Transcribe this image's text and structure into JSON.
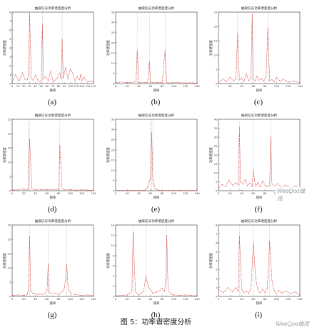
{
  "figure_caption": "图 5：功率谱密度分析",
  "watermarks": [
    "WeeQoo维库",
    "WeeQoo维库"
  ],
  "colors": {
    "series": "#d22323",
    "guides": "#7a7a7a",
    "axis": "#333333"
  },
  "chart_data": [
    {
      "label": "(a)",
      "type": "line",
      "title": "抽取信号功率谱密度分析",
      "xlabel": "频率",
      "ylabel": "功率谱密度",
      "xlim": [
        0,
        140
      ],
      "ylim": [
        0,
        8
      ],
      "xticks": [
        "0",
        "10",
        "20",
        "30",
        "40",
        "50",
        "60",
        "70",
        "80",
        "90",
        "100",
        "110",
        "120",
        "130",
        "140"
      ],
      "yticks": [
        "0",
        "1",
        "2",
        "3",
        "4",
        "5",
        "6",
        "7",
        "8"
      ],
      "x": [
        0,
        6,
        12,
        18,
        22,
        26,
        28,
        30,
        33,
        36,
        40,
        44,
        48,
        50,
        52,
        54,
        58,
        62,
        66,
        70,
        72,
        74,
        78,
        82,
        84,
        86,
        88,
        92,
        96,
        100,
        104,
        108,
        112,
        116,
        118,
        120,
        124,
        128,
        132,
        136,
        140
      ],
      "values": [
        0.2,
        1.0,
        0.3,
        1.2,
        0.5,
        0.4,
        1.0,
        7.9,
        0.6,
        0.3,
        1.0,
        0.4,
        0.2,
        0.5,
        6.7,
        0.5,
        0.8,
        0.3,
        1.4,
        0.4,
        0.2,
        0.4,
        0.6,
        1.2,
        0.5,
        5.0,
        0.6,
        1.8,
        0.5,
        1.6,
        1.2,
        0.3,
        0.8,
        0.4,
        1.1,
        0.3,
        0.7,
        0.3,
        0.2,
        0.3,
        0.2
      ]
    },
    {
      "label": "(b)",
      "type": "line",
      "title": "抽取信号功率谱密度分析",
      "xlabel": "频率",
      "ylabel": "功率谱密度",
      "xlim": [
        0,
        140
      ],
      "ylim": [
        0,
        35
      ],
      "xticks": [
        "0",
        "20",
        "40",
        "60",
        "80",
        "100",
        "120",
        "140"
      ],
      "yticks": [
        "0",
        "5",
        "10",
        "15",
        "20",
        "25",
        "30",
        "35"
      ],
      "x": [
        0,
        10,
        20,
        30,
        35,
        37,
        40,
        45,
        50,
        55,
        58,
        60,
        64,
        70,
        76,
        80,
        85,
        88,
        90,
        94,
        100,
        110,
        120,
        130,
        140
      ],
      "values": [
        0.3,
        0.8,
        0.4,
        0.6,
        1.0,
        16.2,
        0.6,
        0.4,
        0.5,
        0.6,
        11.0,
        0.8,
        0.4,
        0.5,
        0.4,
        0.6,
        16.5,
        0.7,
        0.4,
        0.3,
        0.5,
        0.4,
        0.3,
        0.4,
        0.2
      ]
    },
    {
      "label": "(c)",
      "type": "line",
      "title": "抽取信号功率谱密度分析",
      "xlabel": "频率",
      "ylabel": "功率谱密度",
      "xlim": [
        0,
        140
      ],
      "ylim": [
        0,
        25
      ],
      "xticks": [
        "0",
        "20",
        "40",
        "60",
        "80",
        "100",
        "120",
        "140"
      ],
      "yticks": [
        "0",
        "5",
        "10",
        "15",
        "20",
        "25"
      ],
      "x": [
        0,
        8,
        14,
        20,
        26,
        30,
        33,
        36,
        40,
        44,
        48,
        52,
        56,
        58,
        60,
        63,
        66,
        70,
        74,
        78,
        82,
        85,
        88,
        92,
        96,
        100,
        106,
        112,
        120,
        130,
        140
      ],
      "values": [
        0.4,
        1.6,
        0.6,
        2.3,
        0.7,
        1.8,
        17.8,
        1.2,
        2.0,
        0.6,
        3.5,
        0.9,
        2.1,
        24.2,
        1.5,
        0.7,
        2.6,
        1.1,
        1.9,
        0.8,
        2.8,
        19.6,
        1.0,
        1.4,
        0.6,
        2.2,
        0.8,
        1.5,
        0.5,
        0.9,
        0.3
      ]
    },
    {
      "label": "(d)",
      "type": "line",
      "title": "抽取信号功率谱密度分析",
      "xlabel": "频率",
      "ylabel": "功率谱密度",
      "xlim": [
        0,
        140
      ],
      "ylim": [
        0,
        25
      ],
      "xticks": [
        "0",
        "20",
        "40",
        "60",
        "80",
        "100",
        "120",
        "140"
      ],
      "yticks": [
        "0",
        "5",
        "10",
        "15",
        "20",
        "25"
      ],
      "x": [
        0,
        10,
        20,
        26,
        28,
        30,
        34,
        40,
        50,
        60,
        70,
        76,
        80,
        82,
        86,
        90,
        100,
        110,
        120,
        130,
        140
      ],
      "values": [
        0.2,
        0.4,
        0.6,
        0.3,
        0.8,
        18.2,
        0.7,
        0.3,
        0.4,
        0.3,
        0.5,
        0.4,
        0.6,
        16.4,
        0.7,
        0.3,
        0.4,
        0.2,
        0.3,
        0.2,
        0.1
      ]
    },
    {
      "label": "(e)",
      "type": "line",
      "title": "抽取信号功率谱密度分析",
      "xlabel": "频率",
      "ylabel": "功率谱密度",
      "xlim": [
        0,
        140
      ],
      "ylim": [
        0,
        35
      ],
      "xticks": [
        "0",
        "20",
        "40",
        "60",
        "80",
        "100",
        "120",
        "140"
      ],
      "yticks": [
        "0",
        "5",
        "10",
        "15",
        "20",
        "25",
        "30",
        "35"
      ],
      "x": [
        0,
        10,
        20,
        30,
        40,
        50,
        54,
        58,
        60,
        62,
        64,
        66,
        68,
        72,
        76,
        80,
        90,
        100,
        110,
        120,
        130,
        140
      ],
      "values": [
        0.1,
        0.2,
        0.1,
        0.2,
        0.1,
        0.3,
        1.2,
        4.5,
        6.4,
        28.5,
        5.0,
        3.2,
        1.0,
        0.4,
        0.2,
        0.1,
        0.2,
        0.1,
        0.2,
        0.1,
        0.1,
        0.1
      ]
    },
    {
      "label": "(f)",
      "type": "line",
      "title": "抽取信号功率谱密度分析",
      "xlabel": "频率",
      "ylabel": "功率谱密度",
      "xlim": [
        0,
        140
      ],
      "ylim": [
        0,
        40
      ],
      "xticks": [
        "0",
        "20",
        "40",
        "60",
        "80",
        "100",
        "120",
        "140"
      ],
      "yticks": [
        "0",
        "5",
        "10",
        "15",
        "20",
        "25",
        "30",
        "35",
        "40"
      ],
      "x": [
        0,
        6,
        12,
        18,
        24,
        30,
        34,
        36,
        38,
        42,
        46,
        50,
        54,
        58,
        60,
        62,
        64,
        68,
        72,
        76,
        80,
        84,
        88,
        90,
        92,
        96,
        102,
        108,
        116,
        124,
        132,
        140
      ],
      "values": [
        1.5,
        3.5,
        2.2,
        6.0,
        3.0,
        4.5,
        3.2,
        35.6,
        5.0,
        3.6,
        6.2,
        2.8,
        4.4,
        2.2,
        11.8,
        6.0,
        2.4,
        4.8,
        2.0,
        5.6,
        3.0,
        2.2,
        3.0,
        30.4,
        4.0,
        2.6,
        4.0,
        1.8,
        3.2,
        1.5,
        2.6,
        1.2
      ]
    },
    {
      "label": "(g)",
      "type": "line",
      "title": "抽取信号功率谱密度分析",
      "xlabel": "频率",
      "ylabel": "功率谱密度",
      "xlim": [
        0,
        140
      ],
      "ylim": [
        0,
        25
      ],
      "xticks": [
        "0",
        "20",
        "40",
        "60",
        "80",
        "100",
        "120",
        "140"
      ],
      "yticks": [
        "0",
        "5",
        "10",
        "15",
        "20",
        "25"
      ],
      "x": [
        0,
        10,
        20,
        26,
        28,
        30,
        32,
        36,
        40,
        44,
        48,
        52,
        56,
        60,
        62,
        64,
        68,
        74,
        80,
        86,
        90,
        94,
        96,
        98,
        102,
        110,
        120,
        130,
        140
      ],
      "values": [
        0.3,
        0.5,
        0.4,
        0.6,
        2.5,
        21.0,
        2.0,
        0.8,
        1.2,
        0.6,
        1.0,
        0.7,
        0.9,
        2.0,
        11.5,
        1.4,
        0.8,
        1.2,
        0.7,
        1.6,
        3.0,
        11.2,
        4.0,
        2.0,
        0.9,
        0.6,
        0.4,
        0.5,
        0.3
      ]
    },
    {
      "label": "(h)",
      "type": "line",
      "title": "抽取信号功率谱密度分析",
      "xlabel": "频率",
      "ylabel": "功率谱密度",
      "xlim": [
        0,
        140
      ],
      "ylim": [
        0,
        14
      ],
      "xticks": [
        "0",
        "20",
        "40",
        "60",
        "80",
        "100",
        "120",
        "140"
      ],
      "yticks": [
        "0",
        "2",
        "4",
        "6",
        "8",
        "10",
        "12",
        "14"
      ],
      "x": [
        0,
        10,
        20,
        26,
        28,
        30,
        34,
        40,
        44,
        48,
        52,
        56,
        60,
        64,
        70,
        76,
        80,
        84,
        86,
        88,
        90,
        92,
        96,
        100,
        110,
        120,
        130,
        140
      ],
      "values": [
        0.1,
        0.2,
        0.3,
        0.8,
        1.2,
        12.6,
        0.9,
        0.3,
        0.6,
        1.0,
        4.0,
        2.0,
        1.2,
        0.6,
        0.8,
        1.2,
        1.6,
        0.9,
        3.4,
        12.0,
        2.0,
        1.0,
        0.4,
        0.3,
        0.2,
        0.3,
        0.2,
        0.1
      ]
    },
    {
      "label": "(i)",
      "type": "line",
      "title": "抽取信号功率谱密度分析",
      "xlabel": "频率",
      "ylabel": "功率谱密度",
      "xlim": [
        0,
        140
      ],
      "ylim": [
        0,
        8
      ],
      "xticks": [
        "0",
        "20",
        "40",
        "60",
        "80",
        "100",
        "120",
        "140"
      ],
      "yticks": [
        "0",
        "1",
        "2",
        "3",
        "4",
        "5",
        "6",
        "7",
        "8"
      ],
      "x": [
        0,
        8,
        16,
        24,
        30,
        34,
        36,
        40,
        44,
        48,
        52,
        56,
        60,
        64,
        68,
        72,
        76,
        80,
        84,
        88,
        92,
        96,
        100,
        104,
        108,
        116,
        124,
        132,
        140
      ],
      "values": [
        0.8,
        0.4,
        1.0,
        0.5,
        1.0,
        0.6,
        6.8,
        0.8,
        0.4,
        0.6,
        0.3,
        0.9,
        6.0,
        2.0,
        0.6,
        0.4,
        0.8,
        0.4,
        0.9,
        6.2,
        1.8,
        0.6,
        0.3,
        0.7,
        0.4,
        0.6,
        0.3,
        0.5,
        0.2
      ]
    }
  ]
}
